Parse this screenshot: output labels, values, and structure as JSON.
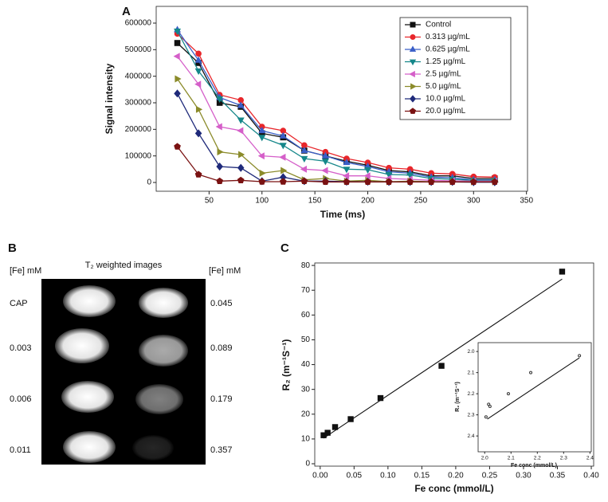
{
  "chart_data": [
    {
      "type": "line",
      "panel": "A",
      "x_label": "Time (ms)",
      "y_label": "Signal intensity",
      "x": [
        20,
        40,
        60,
        80,
        100,
        120,
        140,
        160,
        180,
        200,
        220,
        240,
        260,
        280,
        300,
        320
      ],
      "xlim": [
        0,
        351
      ],
      "ylim": [
        -33000,
        663000
      ],
      "xticks": [
        50,
        100,
        150,
        200,
        250,
        300,
        350
      ],
      "yticks": [
        0,
        100000,
        200000,
        300000,
        400000,
        500000,
        600000
      ],
      "legend": "upper-right",
      "series": [
        {
          "name": "Control",
          "color": "#111111",
          "marker": "square",
          "values": [
            525000,
            450000,
            300000,
            285000,
            185000,
            170000,
            120000,
            100000,
            80000,
            65000,
            45000,
            40000,
            25000,
            25000,
            15000,
            15000
          ]
        },
        {
          "name": "0.313 µg/mL",
          "color": "#e8262b",
          "marker": "circle",
          "values": [
            560000,
            485000,
            330000,
            310000,
            210000,
            195000,
            140000,
            115000,
            90000,
            75000,
            55000,
            50000,
            35000,
            32000,
            22000,
            20000
          ]
        },
        {
          "name": "0.625 µg/mL",
          "color": "#3a5fc8",
          "marker": "triangle-up",
          "values": [
            575000,
            460000,
            320000,
            290000,
            195000,
            175000,
            120000,
            100000,
            75000,
            60000,
            40000,
            35000,
            20000,
            18000,
            10000,
            10000
          ]
        },
        {
          "name": "1.25 µg/mL",
          "color": "#15878a",
          "marker": "triangle-down",
          "values": [
            570000,
            420000,
            315000,
            235000,
            170000,
            140000,
            90000,
            80000,
            50000,
            48000,
            30000,
            28000,
            15000,
            12000,
            8000,
            8000
          ]
        },
        {
          "name": "2.5 µg/mL",
          "color": "#d55fc9",
          "marker": "triangle-left",
          "values": [
            475000,
            370000,
            210000,
            195000,
            100000,
            95000,
            50000,
            45000,
            25000,
            25000,
            15000,
            12000,
            8000,
            6000,
            5000,
            5000
          ]
        },
        {
          "name": "5.0 µg/mL",
          "color": "#8b8b2a",
          "marker": "triangle-right",
          "values": [
            390000,
            275000,
            115000,
            105000,
            35000,
            45000,
            10000,
            15000,
            5000,
            8000,
            3000,
            5000,
            3000,
            3000,
            2000,
            2000
          ]
        },
        {
          "name": "10.0 µg/mL",
          "color": "#1f2a7a",
          "marker": "diamond",
          "values": [
            335000,
            185000,
            60000,
            55000,
            5000,
            20000,
            5000,
            5000,
            3000,
            3000,
            2000,
            2000,
            2000,
            2000,
            1000,
            1000
          ]
        },
        {
          "name": "20.0 µg/mL",
          "color": "#7a1212",
          "marker": "pentagon",
          "values": [
            135000,
            30000,
            5000,
            8000,
            3000,
            3000,
            5000,
            2000,
            2000,
            2000,
            2000,
            2000,
            2000,
            2000,
            2000,
            2000
          ]
        }
      ]
    },
    {
      "type": "scatter",
      "panel": "C",
      "x_label": "Fe conc (mmol/L)",
      "y_label": "R₂ (m⁻¹S⁻¹)",
      "xlim": [
        -0.008,
        0.4035
      ],
      "ylim": [
        -0.96,
        81
      ],
      "xticks": [
        {
          "value": 0,
          "label": "0.00"
        },
        {
          "value": 0.05,
          "label": "0.05"
        },
        {
          "value": 0.1,
          "label": "0.10"
        },
        {
          "value": 0.15,
          "label": "0.15"
        },
        {
          "value": 0.2,
          "label": "0.20"
        },
        {
          "value": 0.25,
          "label": "0.25"
        },
        {
          "value": 0.3,
          "label": "0.30"
        },
        {
          "value": 0.35,
          "label": "0.35"
        },
        {
          "value": 0.4,
          "label": "0.40"
        }
      ],
      "yticks": [
        0,
        10,
        20,
        30,
        40,
        50,
        60,
        70,
        80
      ],
      "color": "#111111",
      "marker": "square",
      "x": [
        0.005,
        0.011,
        0.022,
        0.045,
        0.089,
        0.179,
        0.357
      ],
      "values": [
        11.5,
        12.5,
        14.8,
        18,
        26.5,
        39.5,
        77.5
      ],
      "fit": {
        "x": [
          0.005,
          0.357
        ],
        "y": [
          10.3,
          74.5
        ]
      }
    },
    {
      "type": "scatter",
      "x_label": "Fe conc (mmol/L)",
      "y_label": "R₂ (m⁻¹S⁻¹)",
      "xlim": [
        1.975,
        2.405
      ],
      "ylim": [
        2.475,
        1.958
      ],
      "xticks": [
        {
          "value": 2,
          "label": "2.0"
        },
        {
          "value": 2.1,
          "label": "2.1"
        },
        {
          "value": 2.2,
          "label": "2.2"
        },
        {
          "value": 2.3,
          "label": "2.3"
        },
        {
          "value": 2.4,
          "label": "2.4"
        }
      ],
      "yticks": [
        {
          "value": 2,
          "label": "2.0"
        },
        {
          "value": 2.1,
          "label": "2.1"
        },
        {
          "value": 2.2,
          "label": "2.2"
        },
        {
          "value": 2.3,
          "label": "2.3"
        },
        {
          "value": 2.4,
          "label": "2.4"
        }
      ],
      "color": "#333333",
      "marker": "circle",
      "x": [
        2.005,
        2.015,
        2.02,
        2.09,
        2.175,
        2.36
      ],
      "values": [
        2.31,
        2.25,
        2.26,
        2.2,
        2.1,
        2.02
      ],
      "fit": {
        "x": [
          2.01,
          2.36
        ],
        "y": [
          2.32,
          2.03
        ]
      }
    }
  ],
  "image_panel": {
    "panel": "B",
    "left_header": "[Fe] mM",
    "title": "T₂ weighted images",
    "right_header": "[Fe] mM",
    "left_labels": [
      "CAP",
      "0.003",
      "0.006",
      "0.011"
    ],
    "right_labels": [
      "0.045",
      "0.089",
      "0.179",
      "0.357"
    ]
  }
}
